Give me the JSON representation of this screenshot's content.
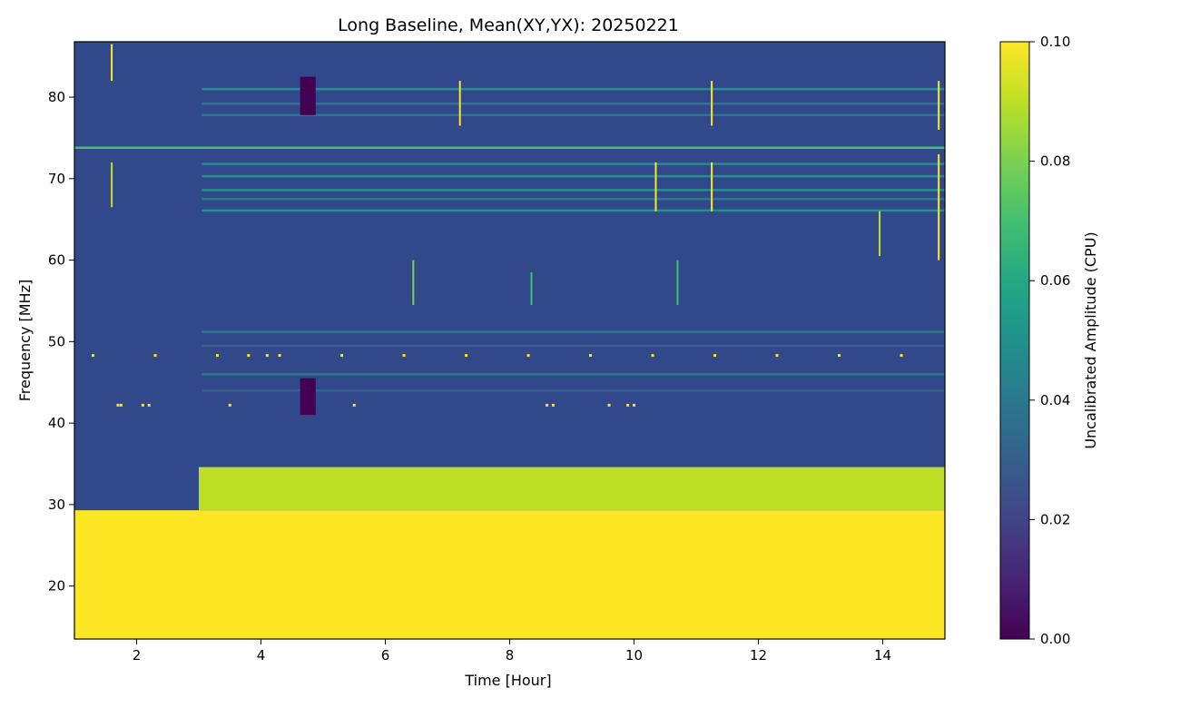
{
  "chart_data": {
    "type": "heatmap",
    "title": "Long Baseline, Mean(XY,YX): 20250221",
    "xlabel": "Time [Hour]",
    "ylabel": "Frequency [MHz]",
    "xlim": [
      1.0,
      15.0
    ],
    "ylim": [
      13.5,
      86.8
    ],
    "xticks": [
      2,
      4,
      6,
      8,
      10,
      12,
      14
    ],
    "xtick_labels": [
      "2",
      "4",
      "6",
      "8",
      "10",
      "12",
      "14"
    ],
    "yticks": [
      20,
      30,
      40,
      50,
      60,
      70,
      80
    ],
    "ytick_labels": [
      "20",
      "30",
      "40",
      "50",
      "60",
      "70",
      "80"
    ],
    "colorbar": {
      "label": "Uncalibrated Amplitude (CPU)",
      "colormap": "viridis",
      "vmin": 0.0,
      "vmax": 0.1,
      "ticks": [
        0.0,
        0.02,
        0.04,
        0.06,
        0.08,
        0.1
      ],
      "tick_labels": [
        "0.00",
        "0.02",
        "0.04",
        "0.06",
        "0.08",
        "0.10"
      ]
    },
    "background_level": 0.02,
    "regions": [
      {
        "name": "low-band-saturated",
        "freq_range": [
          13.5,
          29.3
        ],
        "time_range": [
          1.0,
          15.0
        ],
        "level": 0.1
      },
      {
        "name": "mid-band-bright",
        "freq_range": [
          29.3,
          34.6
        ],
        "time_range": [
          3.0,
          15.0
        ],
        "level": 0.09
      }
    ],
    "horizontal_lines": [
      {
        "freq": 73.8,
        "time_range": [
          1.0,
          15.0
        ],
        "level": 0.065
      },
      {
        "freq": 71.8,
        "time_range": [
          3.05,
          15.0
        ],
        "level": 0.05
      },
      {
        "freq": 70.3,
        "time_range": [
          3.05,
          15.0
        ],
        "level": 0.045
      },
      {
        "freq": 68.6,
        "time_range": [
          3.05,
          15.0
        ],
        "level": 0.045
      },
      {
        "freq": 67.5,
        "time_range": [
          3.05,
          15.0
        ],
        "level": 0.04
      },
      {
        "freq": 66.1,
        "time_range": [
          3.05,
          15.0
        ],
        "level": 0.055
      },
      {
        "freq": 81.0,
        "time_range": [
          3.05,
          15.0
        ],
        "level": 0.045
      },
      {
        "freq": 79.2,
        "time_range": [
          3.05,
          15.0
        ],
        "level": 0.04
      },
      {
        "freq": 77.8,
        "time_range": [
          3.05,
          15.0
        ],
        "level": 0.04
      },
      {
        "freq": 51.2,
        "time_range": [
          3.05,
          15.0
        ],
        "level": 0.035
      },
      {
        "freq": 49.5,
        "time_range": [
          3.05,
          15.0
        ],
        "level": 0.032
      },
      {
        "freq": 46.0,
        "time_range": [
          3.05,
          15.0
        ],
        "level": 0.04
      },
      {
        "freq": 44.0,
        "time_range": [
          3.05,
          15.0
        ],
        "level": 0.032
      }
    ],
    "vertical_bursts": [
      {
        "time": 1.6,
        "freq_range": [
          82.0,
          86.5
        ],
        "level": 0.1
      },
      {
        "time": 1.6,
        "freq_range": [
          66.5,
          72.0
        ],
        "level": 0.09
      },
      {
        "time": 7.2,
        "freq_range": [
          76.5,
          82.0
        ],
        "level": 0.1
      },
      {
        "time": 10.35,
        "freq_range": [
          66.0,
          72.0
        ],
        "level": 0.1
      },
      {
        "time": 11.25,
        "freq_range": [
          76.5,
          82.0
        ],
        "level": 0.1
      },
      {
        "time": 11.25,
        "freq_range": [
          66.0,
          72.0
        ],
        "level": 0.1
      },
      {
        "time": 13.95,
        "freq_range": [
          60.5,
          66.0
        ],
        "level": 0.09
      },
      {
        "time": 14.9,
        "freq_range": [
          76.0,
          82.0
        ],
        "level": 0.1
      },
      {
        "time": 14.9,
        "freq_range": [
          60.0,
          73.0
        ],
        "level": 0.1
      },
      {
        "time": 6.45,
        "freq_range": [
          54.5,
          60.0
        ],
        "level": 0.08
      },
      {
        "time": 10.7,
        "freq_range": [
          54.5,
          60.0
        ],
        "level": 0.07
      },
      {
        "time": 8.35,
        "freq_range": [
          54.5,
          58.5
        ],
        "level": 0.07
      }
    ],
    "flagged_blocks": [
      {
        "time_range": [
          4.63,
          4.88
        ],
        "freq_range": [
          77.8,
          82.5
        ],
        "level": 0.0
      },
      {
        "time_range": [
          4.63,
          4.88
        ],
        "freq_range": [
          41.0,
          45.5
        ],
        "level": 0.0
      }
    ],
    "spot_rows": [
      {
        "freq": 48.3,
        "times": [
          1.3,
          2.3,
          3.3,
          3.8,
          4.1,
          4.3,
          5.3,
          6.3,
          7.3,
          8.3,
          9.3,
          10.3,
          11.3,
          12.3,
          13.3,
          14.3
        ]
      },
      {
        "freq": 42.2,
        "times": [
          1.7,
          1.75,
          2.1,
          2.2,
          3.5,
          5.5,
          8.6,
          8.7,
          9.6,
          9.9,
          10.0
        ]
      }
    ]
  }
}
